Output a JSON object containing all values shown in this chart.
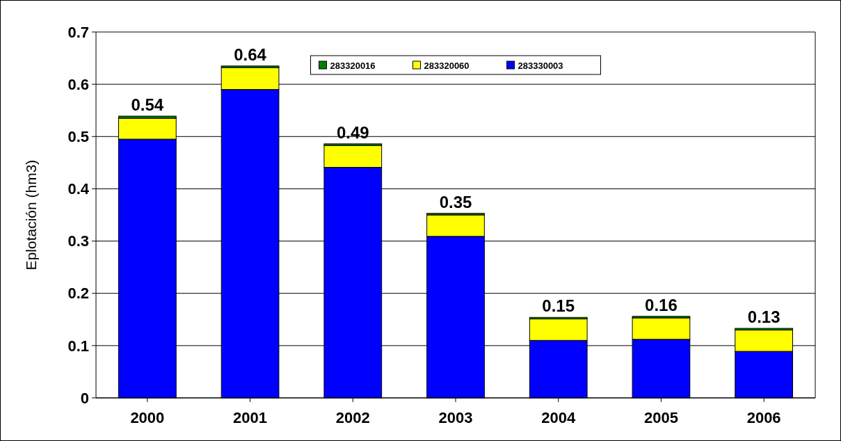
{
  "chart_data": {
    "type": "bar",
    "stacked": true,
    "ylabel": "Eplotación (hm3)",
    "categories": [
      "2000",
      "2001",
      "2002",
      "2003",
      "2004",
      "2005",
      "2006"
    ],
    "series": [
      {
        "name": "283330003",
        "color": "#0000ff",
        "values": [
          0.495,
          0.59,
          0.441,
          0.309,
          0.11,
          0.112,
          0.089
        ]
      },
      {
        "name": "283320060",
        "color": "#ffff00",
        "values": [
          0.04,
          0.042,
          0.042,
          0.041,
          0.041,
          0.041,
          0.041
        ]
      },
      {
        "name": "283320016",
        "color": "#008000",
        "values": [
          0.004,
          0.003,
          0.003,
          0.003,
          0.003,
          0.003,
          0.003
        ]
      }
    ],
    "totals": [
      "0.54",
      "0.64",
      "0.49",
      "0.35",
      "0.15",
      "0.16",
      "0.13"
    ],
    "ylim": [
      0,
      0.7
    ],
    "yticks": [
      {
        "value": 0,
        "label": "0"
      },
      0.1,
      0.2,
      0.3,
      0.4,
      0.5,
      0.6,
      0.7
    ],
    "grid": "y",
    "legend": "top"
  }
}
